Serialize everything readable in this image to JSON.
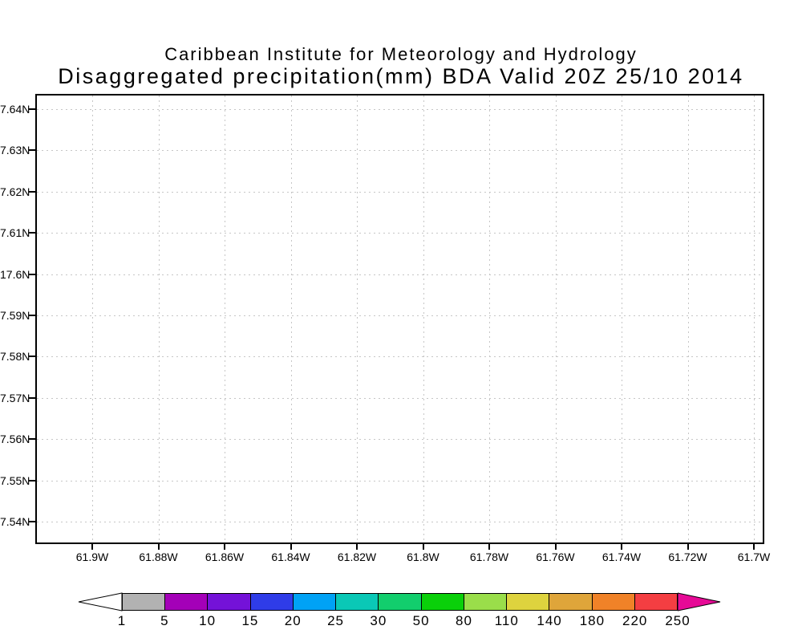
{
  "chart_data": {
    "type": "heatmap",
    "title": "Caribbean Institute for Meteorology and Hydrology",
    "subtitle": "Disaggregated precipitation(mm) BDA Valid 20Z 25/10 2014",
    "xlabel": "",
    "ylabel": "",
    "grid": true,
    "x_ticks": [
      "61.9W",
      "61.88W",
      "61.86W",
      "61.84W",
      "61.82W",
      "61.8W",
      "61.78W",
      "61.76W",
      "61.74W",
      "61.72W",
      "61.7W"
    ],
    "y_ticks": [
      "7.64N",
      "7.63N",
      "7.62N",
      "7.61N",
      "17.6N",
      "7.59N",
      "7.58N",
      "7.57N",
      "7.56N",
      "7.55N",
      "7.54N"
    ],
    "values": [],
    "field_note": "plot area blank - no precipitation shaded",
    "colorbar": {
      "levels": [
        "1",
        "5",
        "10",
        "15",
        "20",
        "25",
        "30",
        "50",
        "80",
        "110",
        "140",
        "180",
        "220",
        "250"
      ],
      "segment_colors": [
        "#b2b2b2",
        "#a400b8",
        "#7412d8",
        "#2f3ce8",
        "#00a2f5",
        "#0ac8b6",
        "#12ce6d",
        "#0ad00a",
        "#9ade4a",
        "#ded33e",
        "#dfa53a",
        "#f08228",
        "#f43e42"
      ],
      "below_min_color": "#ffffff",
      "above_max_color": "#e60a96",
      "outline_color": "#000000",
      "legend_position": "bottom"
    }
  }
}
